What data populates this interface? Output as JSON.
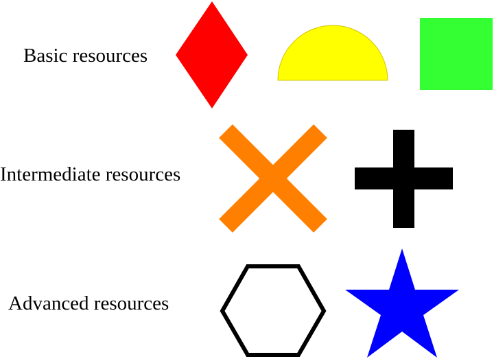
{
  "rows": {
    "basic": {
      "label": "Basic resources",
      "shapes": [
        {
          "name": "red-diamond",
          "icon": "diamond",
          "color": "#ff0000"
        },
        {
          "name": "yellow-semicircle",
          "icon": "semicircle",
          "color": "#ffff00"
        },
        {
          "name": "green-square",
          "icon": "square",
          "color": "#33ff33"
        }
      ]
    },
    "intermediate": {
      "label": "Intermediate resources",
      "shapes": [
        {
          "name": "orange-x-cross",
          "icon": "x-cross",
          "color": "#ff8000"
        },
        {
          "name": "black-plus",
          "icon": "plus",
          "color": "#000000"
        }
      ]
    },
    "advanced": {
      "label": "Advanced resources",
      "shapes": [
        {
          "name": "black-hexagon-outline",
          "icon": "hexagon",
          "color": "#000000"
        },
        {
          "name": "blue-star",
          "icon": "star",
          "color": "#0000ff"
        }
      ]
    }
  },
  "colors": {
    "background": "#ffffff",
    "text": "#000000"
  }
}
